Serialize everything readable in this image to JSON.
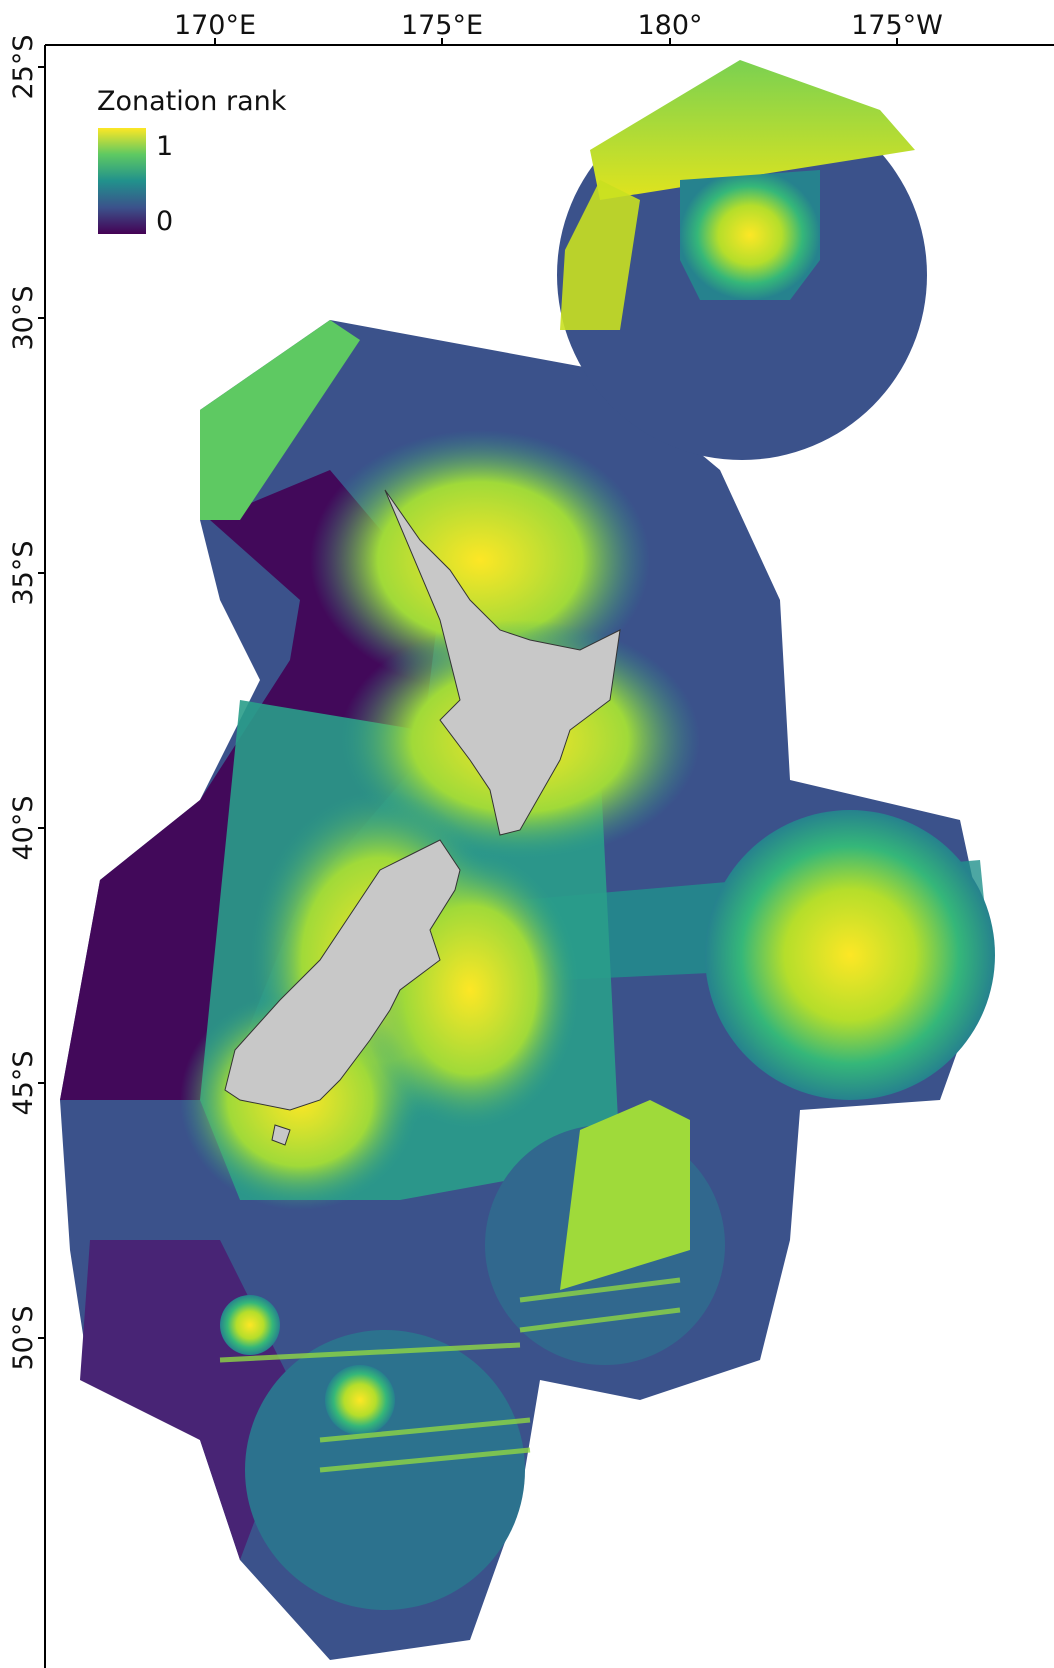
{
  "map": {
    "legend": {
      "title": "Zonation rank",
      "max_label": "1",
      "min_label": "0"
    },
    "x_ticks": [
      "170°E",
      "175°E",
      "180°",
      "175°W"
    ],
    "y_ticks": [
      "25°S",
      "30°S",
      "35°S",
      "40°S",
      "45°S",
      "50°S"
    ]
  }
}
